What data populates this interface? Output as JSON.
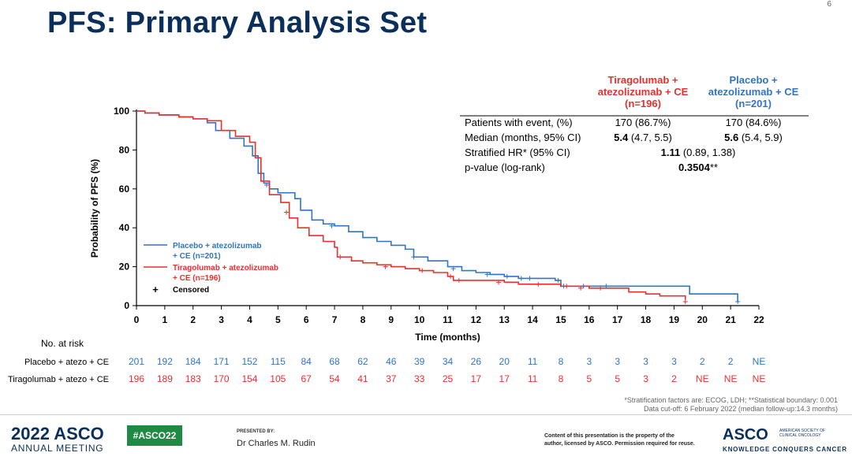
{
  "slide": {
    "title": "PFS: Primary Analysis Set",
    "page_number": "6"
  },
  "chart_data": {
    "type": "line",
    "title": "",
    "xlabel": "Time (months)",
    "ylabel": "Probability of PFS (%)",
    "xlim": [
      0,
      22
    ],
    "ylim": [
      0,
      100
    ],
    "x_ticks": [
      0,
      1,
      2,
      3,
      4,
      5,
      6,
      7,
      8,
      9,
      10,
      11,
      12,
      13,
      14,
      15,
      16,
      17,
      18,
      19,
      20,
      21,
      22
    ],
    "y_ticks": [
      0,
      20,
      40,
      60,
      80,
      100
    ],
    "grid": false,
    "legend_placement": "bottom-left",
    "legend": [
      {
        "label_line1": "Placebo + atezolizumab",
        "label_line2": "+ CE (n=201)",
        "color": "#2f75c2"
      },
      {
        "label_line1": "Tiragolumab + atezolizumab",
        "label_line2": "+ CE (n=196)",
        "color": "#e8302f"
      },
      {
        "label_line1": "Censored",
        "label_line2": "",
        "color": "#000000",
        "symbol": "+"
      }
    ],
    "series": [
      {
        "name": "Placebo + atezolizumab + CE (n=201)",
        "color": "#2f75c2",
        "points": [
          [
            0,
            100
          ],
          [
            0.3,
            99
          ],
          [
            0.8,
            98
          ],
          [
            1.5,
            97
          ],
          [
            2.0,
            96
          ],
          [
            2.5,
            94
          ],
          [
            2.8,
            90
          ],
          [
            3.3,
            86
          ],
          [
            3.8,
            82
          ],
          [
            4.1,
            77
          ],
          [
            4.3,
            68
          ],
          [
            4.5,
            63
          ],
          [
            4.7,
            60
          ],
          [
            5.0,
            58
          ],
          [
            5.4,
            58
          ],
          [
            5.6,
            55
          ],
          [
            5.8,
            49
          ],
          [
            6.2,
            44
          ],
          [
            6.6,
            42
          ],
          [
            7.0,
            41
          ],
          [
            7.5,
            38
          ],
          [
            8.0,
            35
          ],
          [
            8.5,
            33
          ],
          [
            9.0,
            31
          ],
          [
            9.5,
            29
          ],
          [
            9.8,
            25
          ],
          [
            10.3,
            23
          ],
          [
            11.0,
            20
          ],
          [
            11.5,
            18
          ],
          [
            12.0,
            17
          ],
          [
            12.5,
            16
          ],
          [
            13.0,
            15
          ],
          [
            13.5,
            14
          ],
          [
            14.0,
            14
          ],
          [
            14.8,
            13
          ],
          [
            15.0,
            10
          ],
          [
            16.0,
            10
          ],
          [
            17.0,
            10
          ],
          [
            18.0,
            10
          ],
          [
            19.5,
            10
          ],
          [
            19.55,
            6
          ],
          [
            21.2,
            6
          ],
          [
            21.25,
            2
          ]
        ]
      },
      {
        "name": "Tiragolumab + atezolizumab + CE (n=196)",
        "color": "#e8302f",
        "points": [
          [
            0,
            100
          ],
          [
            0.3,
            99
          ],
          [
            0.8,
            98
          ],
          [
            1.5,
            97
          ],
          [
            2.0,
            96
          ],
          [
            2.5,
            95
          ],
          [
            3.0,
            90
          ],
          [
            3.5,
            87
          ],
          [
            4.0,
            84
          ],
          [
            4.2,
            76
          ],
          [
            4.4,
            64
          ],
          [
            4.7,
            57
          ],
          [
            5.1,
            53
          ],
          [
            5.4,
            45
          ],
          [
            5.7,
            40
          ],
          [
            6.1,
            36
          ],
          [
            6.6,
            33
          ],
          [
            7.0,
            30
          ],
          [
            7.1,
            25
          ],
          [
            7.6,
            23
          ],
          [
            8.0,
            22
          ],
          [
            8.5,
            21
          ],
          [
            9.0,
            20
          ],
          [
            9.5,
            19
          ],
          [
            10.0,
            18
          ],
          [
            10.5,
            17
          ],
          [
            11.0,
            15
          ],
          [
            11.2,
            13
          ],
          [
            12.0,
            13
          ],
          [
            13.0,
            12
          ],
          [
            13.5,
            11
          ],
          [
            14.0,
            11
          ],
          [
            15.0,
            10
          ],
          [
            16.0,
            9
          ],
          [
            17.0,
            9
          ],
          [
            17.4,
            7
          ],
          [
            18.0,
            6
          ],
          [
            18.5,
            5
          ],
          [
            19.0,
            5
          ],
          [
            19.4,
            3
          ]
        ]
      }
    ],
    "censor_marks": {
      "placebo": [
        [
          4.6,
          62
        ],
        [
          6.9,
          41
        ],
        [
          9.8,
          25
        ],
        [
          11.2,
          19
        ],
        [
          12.4,
          16
        ],
        [
          13.1,
          15
        ],
        [
          13.6,
          14
        ],
        [
          13.9,
          14
        ],
        [
          14.9,
          13
        ],
        [
          15.1,
          10
        ],
        [
          15.8,
          10
        ],
        [
          16.6,
          10
        ],
        [
          21.25,
          2
        ]
      ],
      "tiragolumab": [
        [
          5.3,
          48
        ],
        [
          7.2,
          25
        ],
        [
          8.8,
          20
        ],
        [
          10.1,
          18
        ],
        [
          11.1,
          15
        ],
        [
          11.4,
          13
        ],
        [
          12.8,
          12
        ],
        [
          14.2,
          11
        ],
        [
          15.2,
          10
        ],
        [
          15.7,
          9
        ],
        [
          16.4,
          9
        ],
        [
          19.4,
          2
        ]
      ]
    }
  },
  "risk_table": {
    "title": "No. at risk",
    "times": [
      "0",
      "1",
      "2",
      "3",
      "4",
      "5",
      "6",
      "7",
      "8",
      "9",
      "10",
      "11",
      "12",
      "13",
      "14",
      "15",
      "16",
      "17",
      "18",
      "19",
      "20",
      "21",
      "22"
    ],
    "rows": [
      {
        "label": "Placebo + atezo + CE",
        "color": "#2f75c2",
        "values": [
          "201",
          "192",
          "184",
          "171",
          "152",
          "115",
          "84",
          "68",
          "62",
          "46",
          "39",
          "34",
          "26",
          "20",
          "11",
          "8",
          "3",
          "3",
          "3",
          "3",
          "2",
          "2",
          "NE"
        ]
      },
      {
        "label": "Tiragolumab + atezo + CE",
        "color": "#e8302f",
        "values": [
          "196",
          "189",
          "183",
          "170",
          "154",
          "105",
          "67",
          "54",
          "41",
          "37",
          "33",
          "25",
          "17",
          "17",
          "11",
          "8",
          "5",
          "5",
          "3",
          "2",
          "NE",
          "NE",
          "NE"
        ]
      }
    ]
  },
  "stats_table": {
    "col_tira": {
      "line1": "Tiragolumab +",
      "line2": "atezolizumab + CE",
      "line3": "(n=196)",
      "color": "#e8302f"
    },
    "col_pbo": {
      "line1": "Placebo +",
      "line2": "atezolizumab + CE",
      "line3": "(n=201)",
      "color": "#2f75c2"
    },
    "rows": {
      "events": {
        "label": "Patients with event, (%)",
        "tira": "170 (86.7%)",
        "pbo": "170 (84.6%)"
      },
      "median": {
        "label": "Median (months, 95% CI)",
        "tira_bold": "5.4",
        "tira_rest": " (4.7, 5.5)",
        "pbo_bold": "5.6",
        "pbo_rest": " (5.4, 5.9)"
      },
      "hr": {
        "label": "Stratified HR* (95% CI)",
        "bold": "1.11",
        "rest": " (0.89, 1.38)"
      },
      "pvalue": {
        "label": "p-value (log-rank)",
        "bold": "0.3504",
        "rest": "**"
      }
    }
  },
  "footnotes": {
    "line1": "*Stratification factors are: ECOG, LDH; **Statistical boundary: 0.001",
    "line2": "Data cut-off: 6 February 2022 (median follow-up:14.3 months)"
  },
  "footer": {
    "asco_year": "2022 ASCO",
    "asco_meeting": "ANNUAL MEETING",
    "hashtag": "#ASCO22",
    "presented_by": "PRESENTED BY:",
    "presenter": "Dr Charles M. Rudin",
    "copyright_line1": "Content of this presentation is the property of the",
    "copyright_line2": "author, licensed by ASCO. Permission required for reuse.",
    "asco_logo": "ASCO",
    "asco_logo_sub1": "AMERICAN SOCIETY OF",
    "asco_logo_sub2": "CLINICAL ONCOLOGY",
    "asco_tagline": "KNOWLEDGE CONQUERS CANCER"
  },
  "colors": {
    "title": "#0b2f5b",
    "placebo": "#2f75c2",
    "tiragolumab": "#e8302f",
    "hashtag_bg": "#1e8a44"
  }
}
